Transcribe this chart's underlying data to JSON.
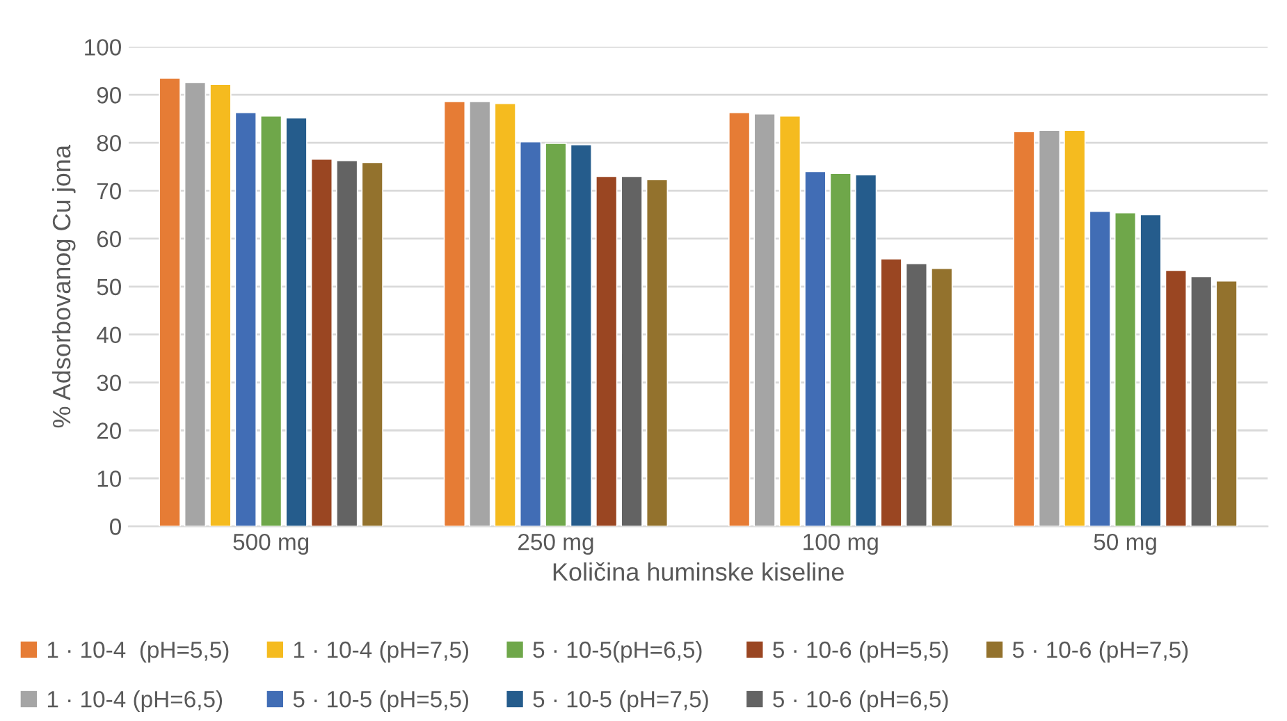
{
  "chart_data": {
    "type": "bar",
    "xlabel": "Količina huminske kiseline",
    "ylabel": "% Adsorbovanog Cu jona",
    "categories": [
      "500 mg",
      "250 mg",
      "100 mg",
      "50 mg"
    ],
    "ylim": [
      0,
      100
    ],
    "yticks": [
      0,
      10,
      20,
      30,
      40,
      50,
      60,
      70,
      80,
      90,
      100
    ],
    "grid": "y",
    "legend": "bottom",
    "series": [
      {
        "name": "1 · 10-4  (pH=5,5)",
        "color": "#e67c35",
        "values": [
          93.5,
          88.6,
          86.3,
          82.3
        ]
      },
      {
        "name": "1 · 10-4 (pH=6,5)",
        "color": "#a5a5a5",
        "values": [
          92.6,
          88.6,
          86.0,
          82.6
        ]
      },
      {
        "name": "1 · 10-4 (pH=7,5)",
        "color": "#f5bb1f",
        "values": [
          92.2,
          88.2,
          85.6,
          82.6
        ]
      },
      {
        "name": "5 · 10-5 (pH=5,5)",
        "color": "#416db5",
        "values": [
          86.3,
          80.2,
          74.0,
          65.7
        ]
      },
      {
        "name": "5 · 10-5(pH=6,5)",
        "color": "#6fa74a",
        "values": [
          85.6,
          79.9,
          73.6,
          65.4
        ]
      },
      {
        "name": "5 · 10-5 (pH=7,5)",
        "color": "#255c8c",
        "values": [
          85.2,
          79.6,
          73.3,
          65.0
        ]
      },
      {
        "name": "5 · 10-6 (pH=5,5)",
        "color": "#9a4622",
        "values": [
          76.6,
          73.0,
          55.8,
          53.4
        ]
      },
      {
        "name": "5 · 10-6 (pH=6,5)",
        "color": "#636363",
        "values": [
          76.3,
          73.0,
          54.8,
          52.1
        ]
      },
      {
        "name": "5 · 10-6 (pH=7,5)",
        "color": "#93722d",
        "values": [
          75.9,
          72.3,
          53.8,
          51.2
        ]
      }
    ]
  }
}
